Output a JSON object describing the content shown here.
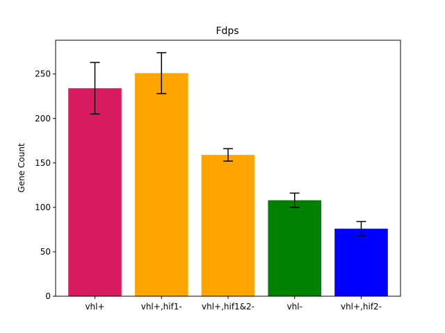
{
  "chart_data": {
    "type": "bar",
    "title": "Fdps",
    "xlabel": "",
    "ylabel": "Gene Count",
    "categories": [
      "vhl+",
      "vhl+,hif1-",
      "vhl+,hif1&2-",
      "vhl-",
      "vhl+,hif2-"
    ],
    "values": [
      234,
      251,
      159,
      108,
      76
    ],
    "errors": [
      29,
      23,
      7,
      8,
      8
    ],
    "colors": [
      "#d81b60",
      "#ffa500",
      "#ffa500",
      "#008000",
      "#0000ff"
    ],
    "yticks": [
      0,
      50,
      100,
      150,
      200,
      250
    ],
    "ylim": [
      0,
      288
    ],
    "grid": false
  }
}
